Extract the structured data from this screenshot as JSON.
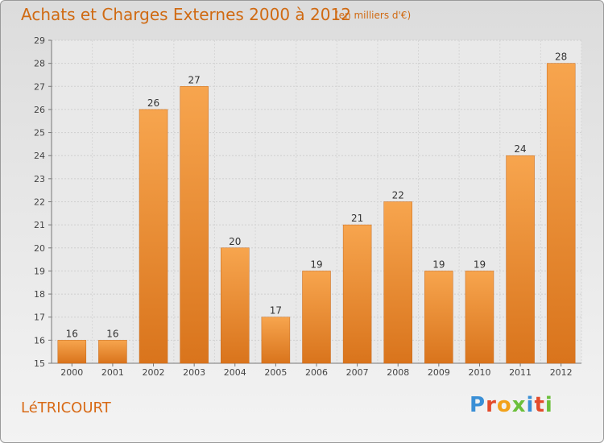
{
  "header": {
    "title": "Achats et Charges Externes 2000 à 2012",
    "unit": "(en milliers d'€)"
  },
  "footer": {
    "place": "LéTRICOURT",
    "brand": "Proxiti"
  },
  "colors": {
    "title": "#d06a12",
    "bar_light": "#f7a54e",
    "bar_dark": "#d9741c",
    "brand_letters": [
      "#3a8fd6",
      "#e34b2b",
      "#f2a21b",
      "#6bbf3a",
      "#3a8fd6",
      "#e34b2b",
      "#6bbf3a"
    ]
  },
  "chart_data": {
    "type": "bar",
    "title": "Achats et Charges Externes 2000 à 2012",
    "subtitle": "(en milliers d'€)",
    "xlabel": "",
    "ylabel": "",
    "categories": [
      "2000",
      "2001",
      "2002",
      "2003",
      "2004",
      "2005",
      "2006",
      "2007",
      "2008",
      "2009",
      "2010",
      "2011",
      "2012"
    ],
    "values": [
      16,
      16,
      26,
      27,
      20,
      17,
      19,
      21,
      22,
      19,
      19,
      24,
      28
    ],
    "ylim": [
      15,
      29
    ],
    "yticks": [
      15,
      16,
      17,
      18,
      19,
      20,
      21,
      22,
      23,
      24,
      25,
      26,
      27,
      28,
      29
    ],
    "grid": true,
    "data_labels": true
  }
}
